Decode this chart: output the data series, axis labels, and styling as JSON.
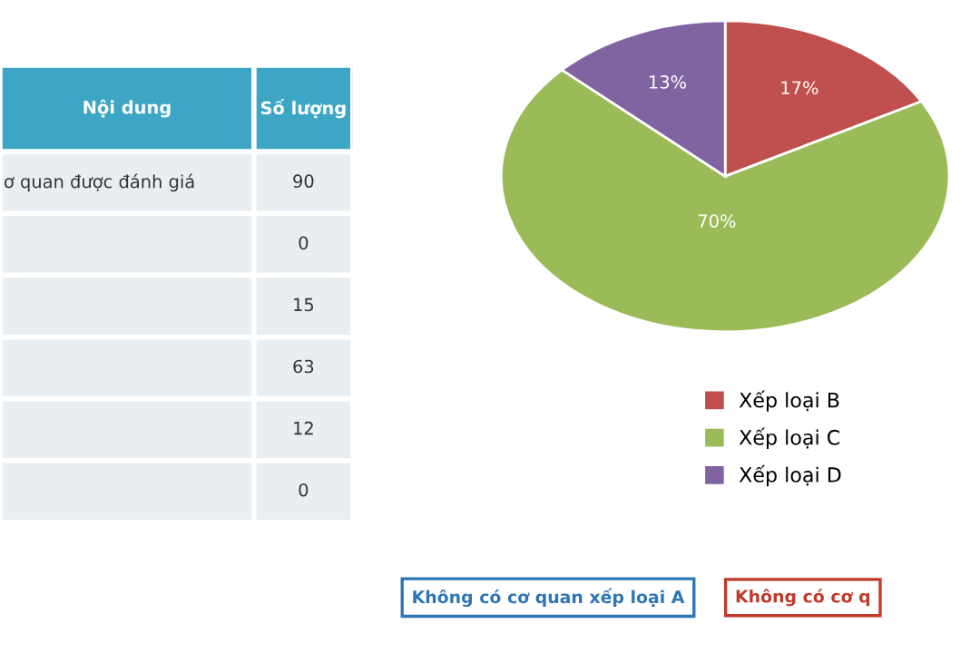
{
  "chart_data": [
    {
      "type": "other",
      "xlabel": "Nội dung",
      "ylabel": "Số lượng",
      "categories": [
        "ơ quan được đánh giá",
        null,
        null,
        null,
        null,
        null
      ],
      "values": [
        90,
        0,
        15,
        63,
        12,
        0
      ],
      "data_labels": true
    },
    {
      "type": "pie",
      "categories": [
        "Xếp loại B",
        "Xếp loại C",
        "Xếp loại D"
      ],
      "values": [
        17,
        70,
        13
      ],
      "colors": [
        "#c0504d",
        "#9bbb59",
        "#8064a2"
      ],
      "value_labels": [
        "17%",
        "70%",
        "13%"
      ],
      "legend": "bottom",
      "annotations": [
        "Không có cơ quan xếp loại A",
        "Không có cơ q"
      ]
    }
  ]
}
